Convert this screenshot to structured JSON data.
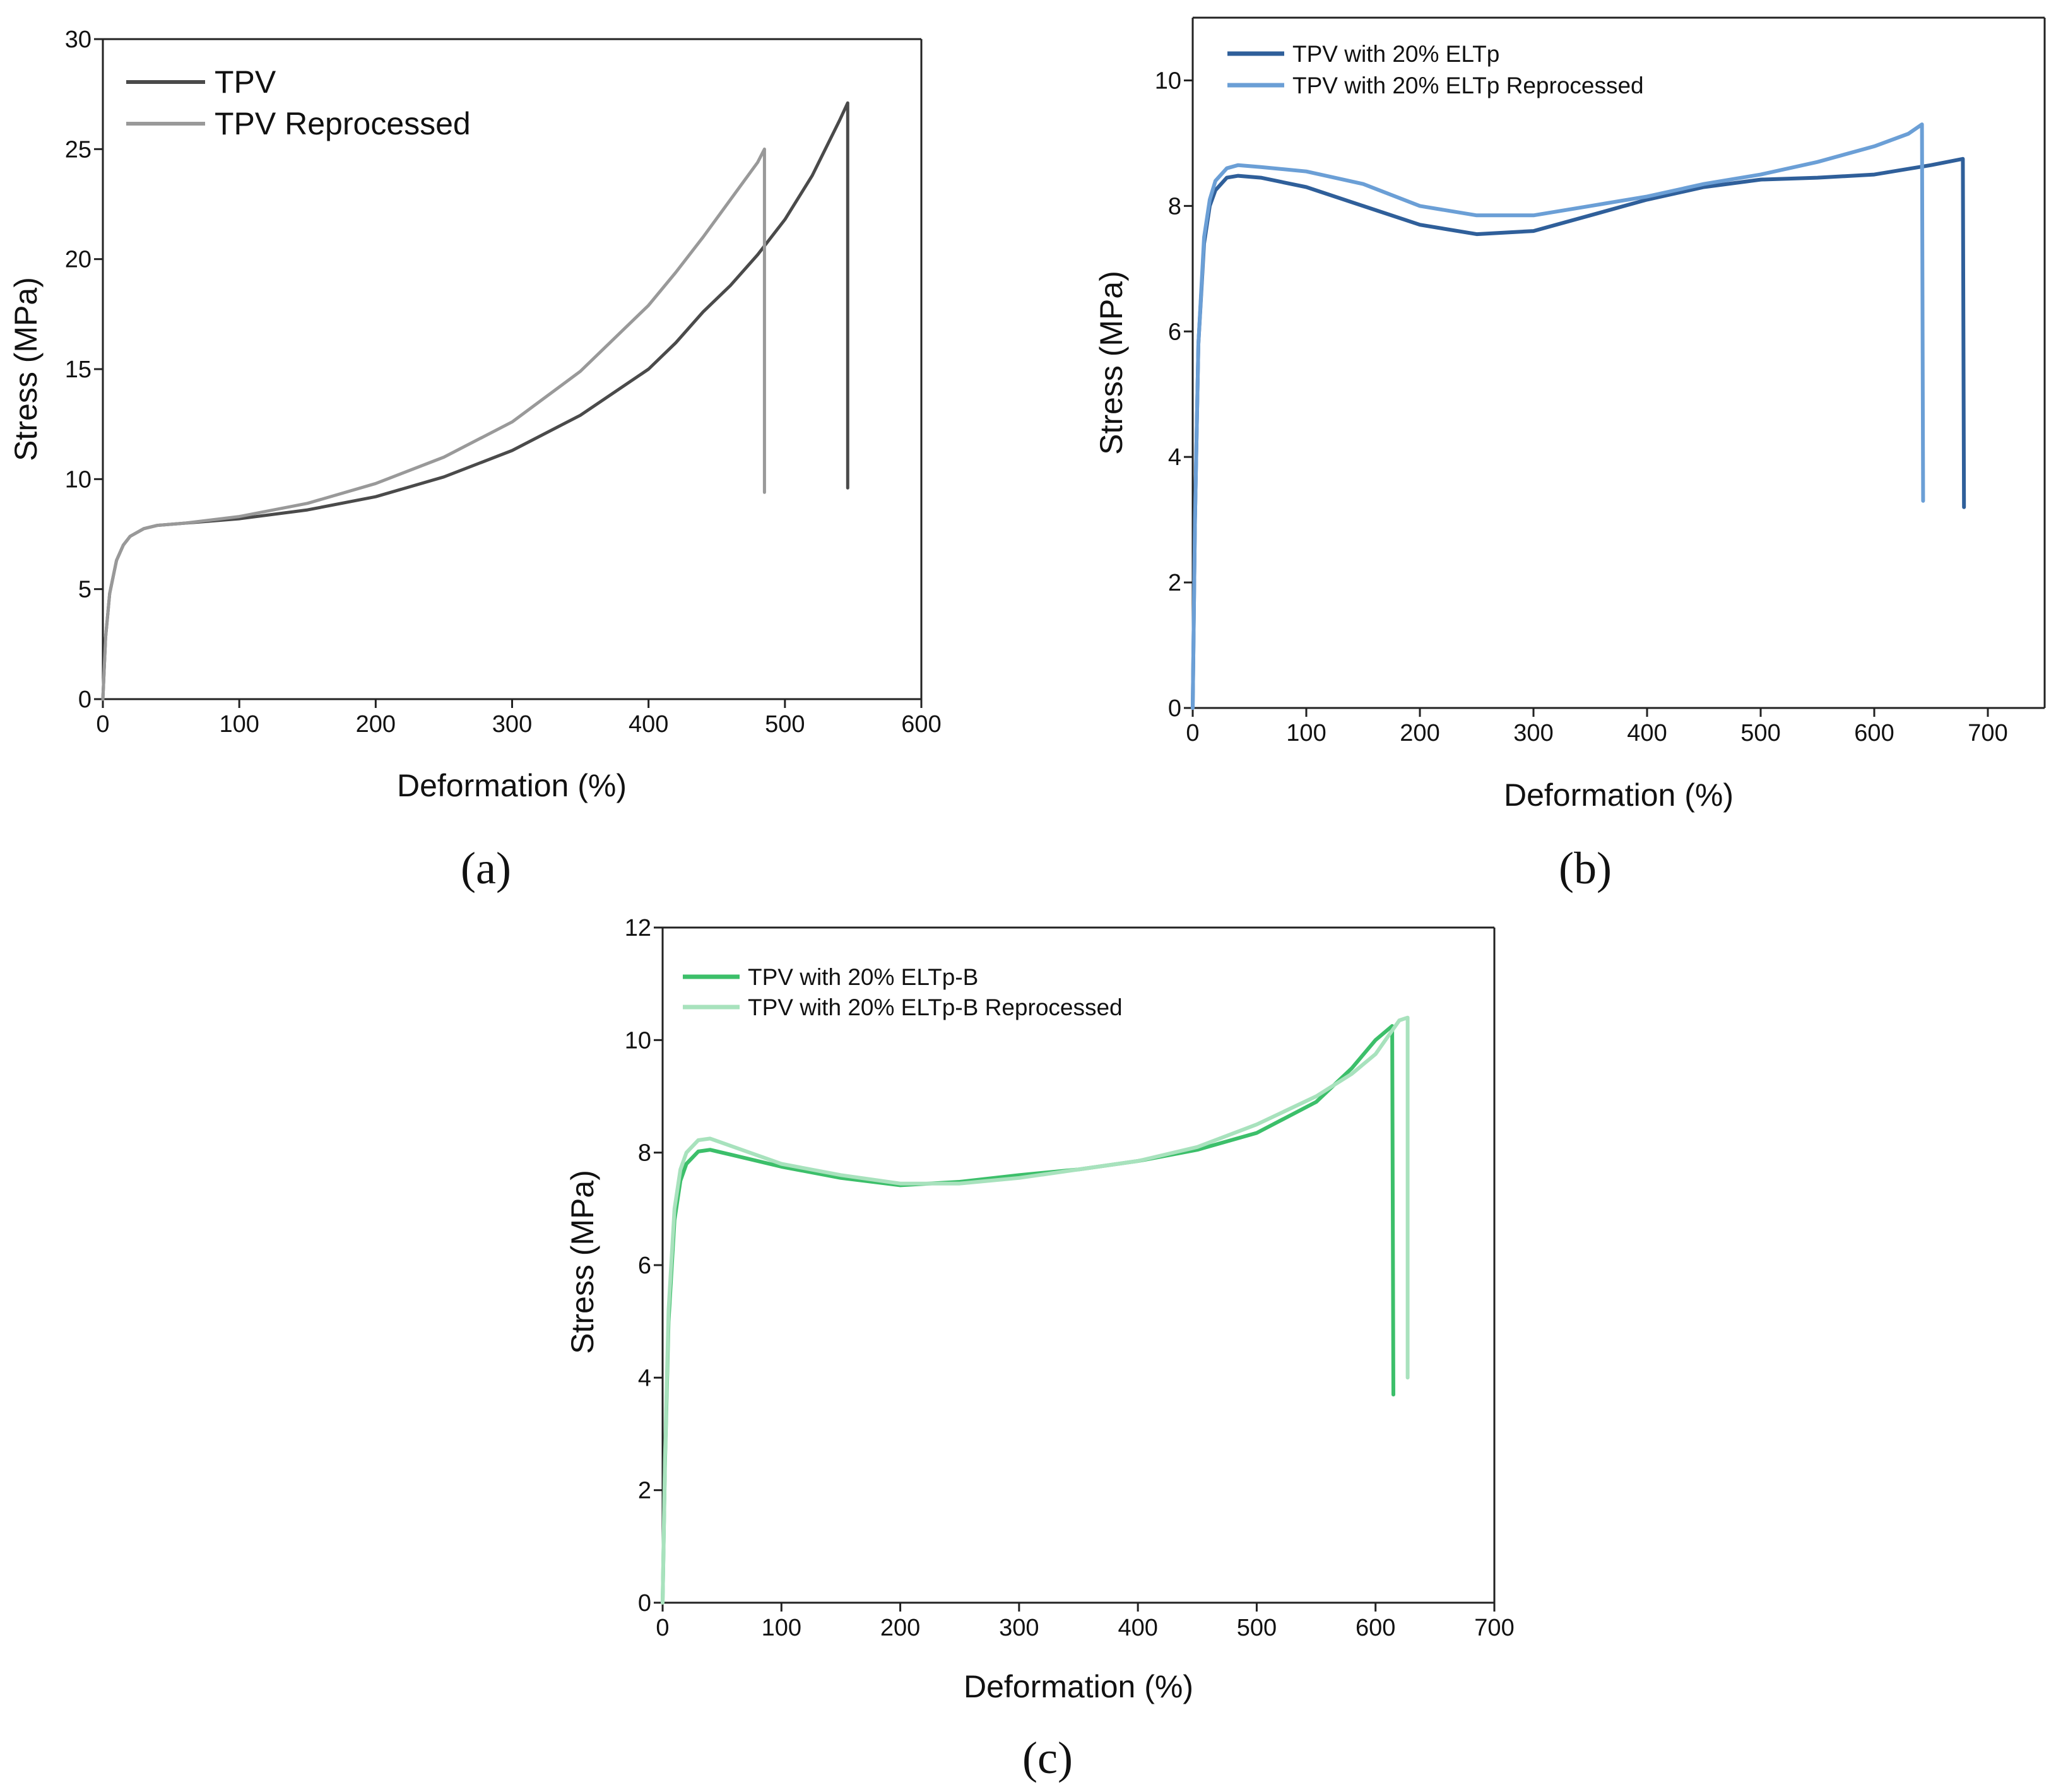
{
  "figure": {
    "panel_labels": {
      "a": "(a)",
      "b": "(b)",
      "c": "(c)"
    }
  },
  "chart_data": [
    {
      "id": "a",
      "type": "line",
      "panel_label": "(a)",
      "title": "",
      "xlabel": "Deformation (%)",
      "ylabel": "Stress (MPa)",
      "xlim": [
        0,
        600
      ],
      "ylim": [
        0,
        30
      ],
      "xticks": [
        0,
        100,
        200,
        300,
        400,
        500,
        600
      ],
      "yticks": [
        0,
        5,
        10,
        15,
        20,
        25,
        30
      ],
      "legend_position": "top-left",
      "grid": false,
      "series": [
        {
          "name": "TPV",
          "color": "#4a4a4a",
          "x": [
            0,
            2,
            5,
            10,
            15,
            20,
            30,
            40,
            60,
            100,
            150,
            200,
            250,
            300,
            350,
            400,
            420,
            440,
            460,
            480,
            500,
            520,
            540,
            546,
            546
          ],
          "y": [
            0,
            2.8,
            4.8,
            6.3,
            7.0,
            7.4,
            7.75,
            7.9,
            8.0,
            8.2,
            8.6,
            9.2,
            10.1,
            11.3,
            12.9,
            15.0,
            16.2,
            17.6,
            18.8,
            20.2,
            21.8,
            23.8,
            26.3,
            27.1,
            9.6
          ]
        },
        {
          "name": "TPV Reprocessed",
          "color": "#999999",
          "x": [
            0,
            2,
            5,
            10,
            15,
            20,
            30,
            40,
            60,
            100,
            150,
            200,
            250,
            300,
            350,
            400,
            420,
            440,
            460,
            480,
            485,
            485
          ],
          "y": [
            0,
            2.8,
            4.8,
            6.3,
            7.0,
            7.4,
            7.75,
            7.9,
            8.0,
            8.3,
            8.9,
            9.8,
            11.0,
            12.6,
            14.9,
            17.9,
            19.4,
            21.0,
            22.7,
            24.4,
            25.0,
            9.4
          ]
        }
      ]
    },
    {
      "id": "b",
      "type": "line",
      "panel_label": "(b)",
      "title": "",
      "xlabel": "Deformation (%)",
      "ylabel": "Stress (MPa)",
      "xlim": [
        0,
        750
      ],
      "ylim": [
        0,
        11
      ],
      "xticks": [
        0,
        100,
        200,
        300,
        400,
        500,
        600,
        700
      ],
      "yticks": [
        0,
        2,
        4,
        6,
        8,
        10
      ],
      "legend_position": "top-left",
      "grid": false,
      "series": [
        {
          "name": "TPV with 20% ELTp",
          "color": "#2f5f9a",
          "x": [
            0,
            2,
            5,
            10,
            15,
            20,
            30,
            40,
            60,
            100,
            150,
            200,
            250,
            300,
            350,
            400,
            450,
            500,
            550,
            600,
            650,
            678,
            679
          ],
          "y": [
            0,
            3.0,
            5.8,
            7.4,
            8.0,
            8.25,
            8.45,
            8.48,
            8.45,
            8.3,
            8.0,
            7.7,
            7.55,
            7.6,
            7.85,
            8.1,
            8.3,
            8.42,
            8.45,
            8.5,
            8.65,
            8.75,
            3.2
          ]
        },
        {
          "name": "TPV with 20% ELTp Reprocessed",
          "color": "#6b9fd6",
          "x": [
            0,
            2,
            5,
            10,
            15,
            20,
            30,
            40,
            60,
            100,
            150,
            200,
            250,
            300,
            350,
            400,
            450,
            500,
            550,
            600,
            630,
            642,
            643
          ],
          "y": [
            0,
            3.0,
            5.8,
            7.5,
            8.1,
            8.4,
            8.6,
            8.65,
            8.62,
            8.55,
            8.35,
            8.0,
            7.85,
            7.85,
            8.0,
            8.15,
            8.35,
            8.5,
            8.7,
            8.95,
            9.15,
            9.3,
            3.3
          ]
        }
      ]
    },
    {
      "id": "c",
      "type": "line",
      "panel_label": "(c)",
      "title": "",
      "xlabel": "Deformation (%)",
      "ylabel": "Stress (MPa)",
      "xlim": [
        0,
        700
      ],
      "ylim": [
        0,
        12
      ],
      "xticks": [
        0,
        100,
        200,
        300,
        400,
        500,
        600,
        700
      ],
      "yticks": [
        0,
        2,
        4,
        6,
        8,
        10,
        12
      ],
      "legend_position": "top-left",
      "grid": false,
      "series": [
        {
          "name": "TPV with 20% ELTp-B",
          "color": "#3cbf6a",
          "x": [
            0,
            2,
            5,
            10,
            15,
            20,
            30,
            40,
            60,
            100,
            150,
            200,
            250,
            300,
            350,
            400,
            450,
            500,
            550,
            580,
            600,
            614,
            615
          ],
          "y": [
            0,
            2.5,
            5.0,
            6.8,
            7.5,
            7.8,
            8.02,
            8.05,
            7.95,
            7.75,
            7.55,
            7.42,
            7.48,
            7.6,
            7.7,
            7.85,
            8.05,
            8.35,
            8.9,
            9.5,
            10.0,
            10.25,
            3.7
          ]
        },
        {
          "name": "TPV with 20% ELTp-B Reprocessed",
          "color": "#a8e2bd",
          "x": [
            0,
            2,
            5,
            10,
            15,
            20,
            30,
            40,
            60,
            100,
            150,
            200,
            250,
            300,
            350,
            400,
            450,
            500,
            550,
            580,
            600,
            620,
            627,
            627
          ],
          "y": [
            0,
            2.6,
            5.2,
            7.0,
            7.7,
            8.0,
            8.22,
            8.25,
            8.1,
            7.8,
            7.6,
            7.45,
            7.45,
            7.55,
            7.7,
            7.85,
            8.1,
            8.5,
            9.0,
            9.4,
            9.75,
            10.35,
            10.4,
            4.0
          ]
        }
      ]
    }
  ]
}
